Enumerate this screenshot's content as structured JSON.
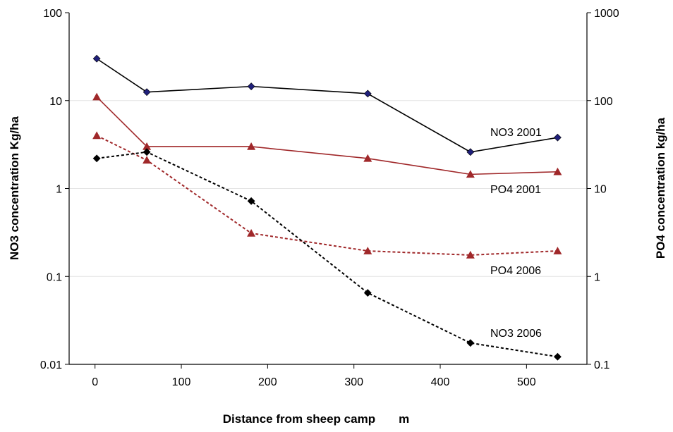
{
  "chart_data": {
    "type": "line",
    "xlabel": "Distance from sheep camp       m",
    "ylabel_left": "NO3 concentration  Kg/ha",
    "ylabel_right": "PO4 concentration  kg/ha",
    "x_ticks": [
      "0",
      "100",
      "200",
      "300",
      "400",
      "500"
    ],
    "y_left_ticks": [
      "0.01",
      "0.1",
      "1",
      "10",
      "100"
    ],
    "y_right_ticks": [
      "0.1",
      "1",
      "10",
      "100",
      "1000"
    ],
    "xlim": [
      -30,
      570
    ],
    "ylim_left": [
      0.01,
      100
    ],
    "ylim_right": [
      0.1,
      1000
    ],
    "y_scale": "log",
    "grid": "horizontal",
    "series": [
      {
        "name": "NO3 2001",
        "axis": "left",
        "color": "#000000",
        "marker_color": "#1f1f7a",
        "marker": "diamond",
        "style": "solid",
        "x": [
          2,
          60,
          181,
          316,
          435,
          536
        ],
        "y": [
          30,
          12.5,
          14.5,
          12,
          2.6,
          3.8
        ]
      },
      {
        "name": "PO4 2001",
        "axis": "right",
        "color": "#a0282a",
        "marker_color": "#a0282a",
        "marker": "triangle",
        "style": "solid",
        "x": [
          2,
          60,
          181,
          316,
          435,
          536
        ],
        "y": [
          110,
          30,
          30,
          22,
          14.5,
          15.5
        ]
      },
      {
        "name": "PO4 2006",
        "axis": "right",
        "color": "#a0282a",
        "marker_color": "#a0282a",
        "marker": "triangle",
        "style": "dashed",
        "x": [
          2,
          60,
          181,
          316,
          435,
          536
        ],
        "y": [
          40,
          21,
          3.1,
          1.95,
          1.75,
          1.95
        ]
      },
      {
        "name": "NO3 2006",
        "axis": "left",
        "color": "#000000",
        "marker_color": "#000000",
        "marker": "diamond",
        "style": "dashed",
        "x": [
          2,
          60,
          181,
          316,
          435,
          536
        ],
        "y": [
          2.2,
          2.6,
          0.72,
          0.065,
          0.0175,
          0.0122
        ]
      }
    ]
  }
}
